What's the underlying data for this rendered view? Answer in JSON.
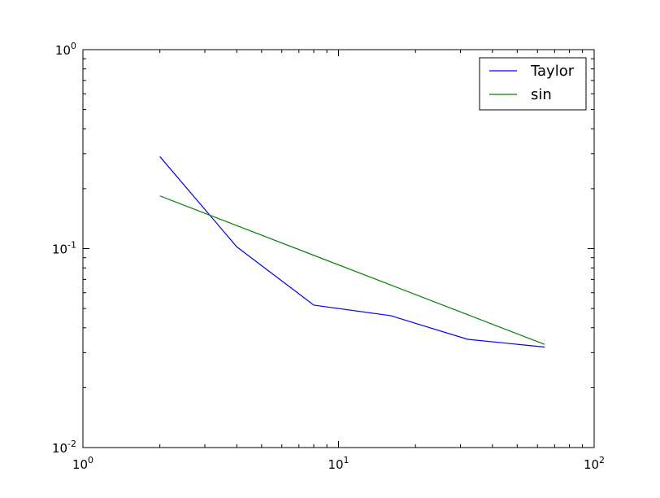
{
  "chart_data": {
    "type": "line",
    "title": "",
    "xlabel": "",
    "ylabel": "",
    "xscale": "log",
    "yscale": "log",
    "xlim": [
      1,
      100
    ],
    "ylim": [
      0.01,
      1
    ],
    "grid": false,
    "legend_position": "top-right",
    "x_ticks": [
      {
        "value": 1,
        "base": "10",
        "exp": "0"
      },
      {
        "value": 10,
        "base": "10",
        "exp": "1"
      },
      {
        "value": 100,
        "base": "10",
        "exp": "2"
      }
    ],
    "y_ticks": [
      {
        "value": 0.01,
        "base": "10",
        "exp": "-2"
      },
      {
        "value": 0.1,
        "base": "10",
        "exp": "-1"
      },
      {
        "value": 1,
        "base": "10",
        "exp": "0"
      }
    ],
    "series": [
      {
        "name": "Taylor",
        "color": "#0000ff",
        "x": [
          2,
          4,
          8,
          16,
          32,
          64
        ],
        "y": [
          0.29,
          0.102,
          0.052,
          0.046,
          0.035,
          0.032
        ]
      },
      {
        "name": "sin",
        "color": "#008000",
        "x": [
          2,
          64
        ],
        "y": [
          0.184,
          0.033
        ]
      }
    ]
  }
}
